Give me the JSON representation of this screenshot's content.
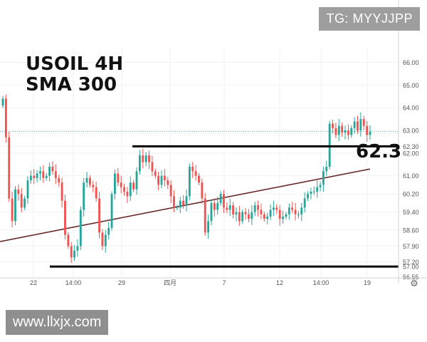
{
  "watermark_top": "TG: MYYJJPP",
  "watermark_bottom": "www.llxjx.com",
  "chart_data": {
    "type": "candlestick",
    "title": "USOIL 4H",
    "subtitle": "SMA 300",
    "ylim": [
      56.5,
      66.3
    ],
    "y_ticks": [
      "66.00",
      "65.00",
      "64.00",
      "63.00",
      "62.30",
      "62.00",
      "61.00",
      "60.20",
      "59.40",
      "58.60",
      "57.90",
      "57.20",
      "57.00",
      "56.55"
    ],
    "x_ticks": [
      "22",
      "14:00",
      "29",
      "四月",
      "7",
      "12",
      "14:00",
      "19"
    ],
    "last_price_label": "62.95",
    "last_price": 62.95,
    "levels": [
      {
        "label": "62.30",
        "value": 62.3
      },
      {
        "label": "57.00",
        "value": 57.0
      }
    ],
    "callout": "62.3",
    "sma": {
      "name": "SMA 300",
      "start": 58.1,
      "end": 61.3
    },
    "closes": [
      64.4,
      62.7,
      60.0,
      59.0,
      60.4,
      60.2,
      59.6,
      60.0,
      60.8,
      61.0,
      60.9,
      61.1,
      61.2,
      60.9,
      61.0,
      61.4,
      61.2,
      60.9,
      60.7,
      59.9,
      58.4,
      57.9,
      57.4,
      57.7,
      57.9,
      59.5,
      60.7,
      60.9,
      60.6,
      60.5,
      60.0,
      58.5,
      57.9,
      58.4,
      58.7,
      60.2,
      61.1,
      60.7,
      60.5,
      60.3,
      60.1,
      60.7,
      60.4,
      61.2,
      61.9,
      61.6,
      61.9,
      61.6,
      61.2,
      61.0,
      60.6,
      61.0,
      60.8,
      60.6,
      60.1,
      59.6,
      59.6,
      59.9,
      59.7,
      60.1,
      61.4,
      61.2,
      61.0,
      60.7,
      60.0,
      58.5,
      59.0,
      59.8,
      59.5,
      59.8,
      60.2,
      59.6,
      59.5,
      59.7,
      59.3,
      59.4,
      59.0,
      59.4,
      59.3,
      59.1,
      59.4,
      59.7,
      59.5,
      59.3,
      59.1,
      59.2,
      59.5,
      59.6,
      59.5,
      59.1,
      59.2,
      59.3,
      59.6,
      59.5,
      59.3,
      59.3,
      59.6,
      60.0,
      60.2,
      60.3,
      60.3,
      60.5,
      60.6,
      61.2,
      61.4,
      63.3,
      63.1,
      62.8,
      63.2,
      62.9,
      63.0,
      62.8,
      63.1,
      63.4,
      63.0,
      63.5,
      63.2,
      62.8,
      62.95
    ]
  }
}
